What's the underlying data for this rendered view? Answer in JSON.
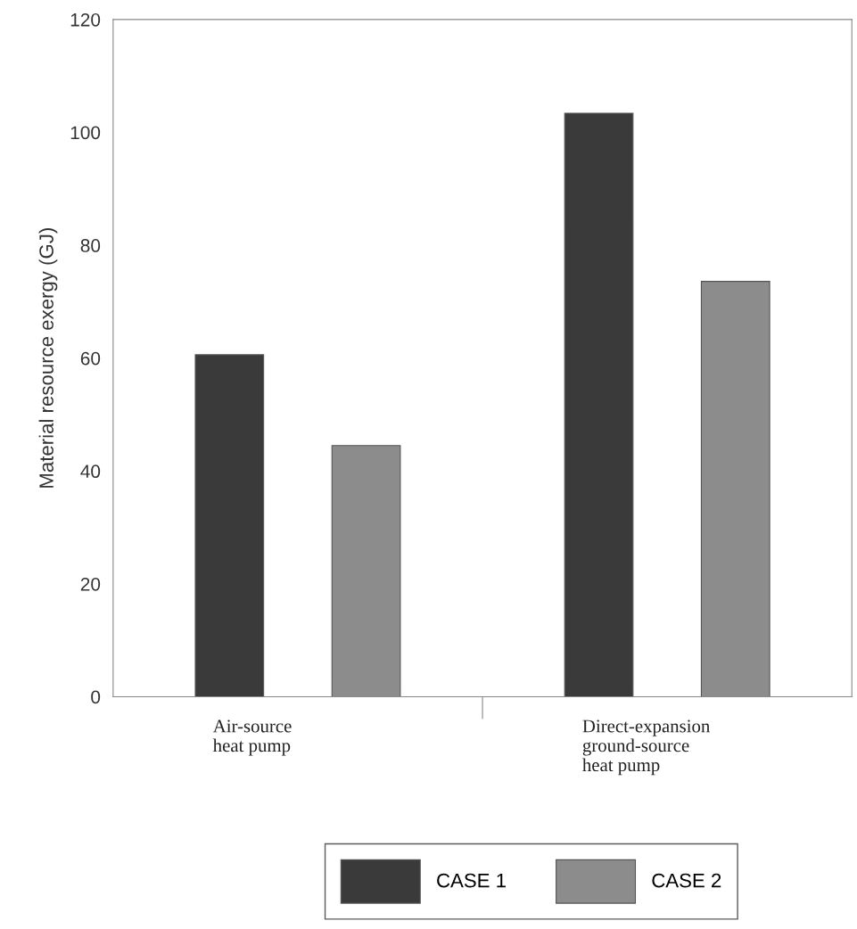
{
  "chart_data": {
    "type": "bar",
    "ylabel": "Material resource exergy (GJ)",
    "categories": [
      "Air-source\nheat pump",
      "Direct-expansion\nground-source\nheat pump"
    ],
    "series": [
      {
        "name": "CASE 1",
        "color": "#3a3a3a",
        "values": [
          60.6,
          103.4
        ]
      },
      {
        "name": "CASE 2",
        "color": "#8c8c8c",
        "values": [
          44.5,
          73.6
        ]
      }
    ],
    "ylim": [
      0,
      120
    ],
    "yticks": [
      0,
      20,
      40,
      60,
      80,
      100,
      120
    ],
    "grid": false,
    "legend": "bottom"
  }
}
